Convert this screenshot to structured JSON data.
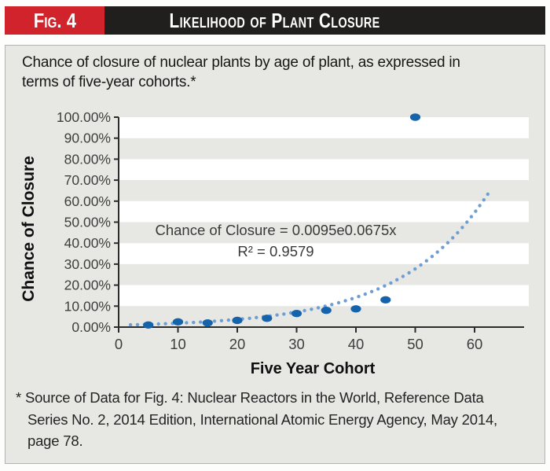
{
  "header": {
    "fig_label": "Fig. 4",
    "title": "Likelihood of Plant Closure"
  },
  "subtitle_lines": [
    "Chance of closure of nuclear plants by age of plant, as expressed in",
    "terms of five-year cohorts.*"
  ],
  "footnote": {
    "marker": "*",
    "lines": [
      "Source of Data for Fig. 4: Nuclear Reactors in the World, Reference Data",
      "Series No. 2, 2014 Edition, International Atomic Energy Agency, May 2014,",
      "page 78."
    ]
  },
  "colors": {
    "accent_red": "#d0232b",
    "bar_black": "#211e1e",
    "panel_bg": "#e7e8e4",
    "stripe_white": "#ffffff",
    "axis_dark": "#2b2b2b",
    "tick_text": "#3e3e3e",
    "annotation_text": "#3a3a3a",
    "point_blue": "#1563ab",
    "trend_blue": "#6f9fd2"
  },
  "chart_data": {
    "type": "scatter",
    "title": "",
    "xlabel": "Five Year Cohort",
    "ylabel": "Chance of Closure",
    "xlim": [
      0,
      69
    ],
    "ylim": [
      0,
      100
    ],
    "grid": "alternating horizontal white/gray bands every 10%",
    "legend": "none",
    "x_tick_values": [
      0,
      10,
      20,
      30,
      40,
      50,
      60
    ],
    "x_tick_labels": [
      "0",
      "10",
      "20",
      "30",
      "40",
      "50",
      "60"
    ],
    "y_tick_values": [
      0,
      10,
      20,
      30,
      40,
      50,
      60,
      70,
      80,
      90,
      100
    ],
    "y_tick_labels": [
      "0.00%",
      "10.00%",
      "20.00%",
      "30.00%",
      "40.00%",
      "50.00%",
      "60.00%",
      "70.00%",
      "80.00%",
      "90.00%",
      "100.00%"
    ],
    "series": [
      {
        "name": "Chance of Closure",
        "x": [
          5,
          10,
          15,
          20,
          25,
          30,
          35,
          40,
          45,
          50
        ],
        "y": [
          1.0,
          2.5,
          2.0,
          3.2,
          4.2,
          6.5,
          8.0,
          8.7,
          13.0,
          100.0
        ]
      }
    ],
    "trendline": {
      "type": "exponential",
      "formula": "y = 0.0095e^(0.0675x)",
      "a": 0.0095,
      "b": 0.0675,
      "x_start": 2,
      "x_end": 62.3,
      "style": "dotted"
    },
    "annotation": {
      "equation": "Chance of Closure = 0.0095e0.0675x",
      "r_squared": "R² = 0.9579"
    }
  }
}
